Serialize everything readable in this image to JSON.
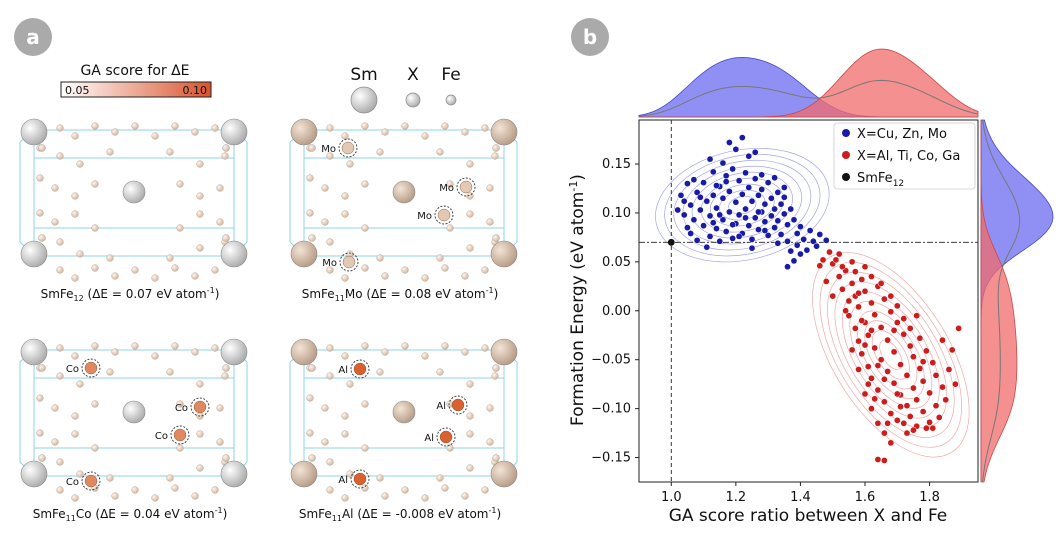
{
  "panel_a": {
    "badge": "a",
    "colorbar": {
      "title": "GA score for ΔE",
      "min_label": "0.05",
      "max_label": "0.10",
      "low_color": "#ffffff",
      "high_color": "#d9532b"
    },
    "atom_legend": [
      "Sm",
      "X",
      "Fe"
    ],
    "structures": [
      {
        "formula_main": "SmFe",
        "sub": "12",
        "formula_tail": "",
        "caption": "(ΔE = 0.07 eV atom",
        "sup": "-1",
        "close": ")",
        "dopant": "",
        "dopant_color": ""
      },
      {
        "formula_main": "SmFe",
        "sub": "11",
        "formula_tail": "Mo",
        "caption": "(ΔE = 0.08 eV atom",
        "sup": "-1",
        "close": ")",
        "dopant": "Mo",
        "dopant_color": "#e3c9b3"
      },
      {
        "formula_main": "SmFe",
        "sub": "11",
        "formula_tail": "Co",
        "caption": "(ΔE = 0.04 eV atom",
        "sup": "-1",
        "close": ")",
        "dopant": "Co",
        "dopant_color": "#e08860"
      },
      {
        "formula_main": "SmFe",
        "sub": "11",
        "formula_tail": "Al",
        "caption": "(ΔE = -0.008 eV atom",
        "sup": "-1",
        "close": ")",
        "dopant": "Al",
        "dopant_color": "#d9602f"
      }
    ]
  },
  "panel_b": {
    "badge": "b",
    "xlabel": "GA score ratio between X and Fe",
    "ylabel_main": "Formation Energy (eV atom",
    "ylabel_sup": "-1",
    "ylabel_close": ")",
    "legend": [
      {
        "label": "X=Cu, Zn, Mo",
        "color": "#1a1aa8"
      },
      {
        "label": "X=Al, Ti, Co, Ga",
        "color": "#cc1c1c"
      },
      {
        "label": "SmFe",
        "sub": "12",
        "color": "#111111"
      }
    ]
  },
  "chart_data": {
    "type": "scatter",
    "xlabel": "GA score ratio between X and Fe",
    "ylabel": "Formation Energy (eV atom-1)",
    "xlim": [
      0.9,
      1.95
    ],
    "ylim": [
      -0.175,
      0.195
    ],
    "xticks": [
      1.0,
      1.2,
      1.4,
      1.6,
      1.8
    ],
    "xtick_labels": [
      "1.0",
      "1.2",
      "1.4",
      "1.6",
      "1.8"
    ],
    "yticks": [
      0.15,
      0.1,
      0.05,
      0.0,
      -0.05,
      -0.1,
      -0.15
    ],
    "ytick_labels": [
      "0.15",
      "0.10",
      "0.05",
      "0.00",
      "−0.05",
      "−0.10",
      "−0.15"
    ],
    "reference_lines": {
      "x": 1.0,
      "y": 0.07
    },
    "grid": false,
    "legend_position": "top-right",
    "series": [
      {
        "name": "X=Cu, Zn, Mo",
        "color": "#1a1aa8",
        "points": [
          [
            1.03,
            0.118
          ],
          [
            1.04,
            0.098
          ],
          [
            1.05,
            0.085
          ],
          [
            1.06,
            0.108
          ],
          [
            1.06,
            0.079
          ],
          [
            1.07,
            0.093
          ],
          [
            1.08,
            0.121
          ],
          [
            1.08,
            0.072
          ],
          [
            1.09,
            0.103
          ],
          [
            1.1,
            0.087
          ],
          [
            1.1,
            0.131
          ],
          [
            1.11,
            0.112
          ],
          [
            1.12,
            0.076
          ],
          [
            1.12,
            0.097
          ],
          [
            1.13,
            0.142
          ],
          [
            1.13,
            0.118
          ],
          [
            1.14,
            0.084
          ],
          [
            1.14,
            0.105
          ],
          [
            1.15,
            0.127
          ],
          [
            1.15,
            0.071
          ],
          [
            1.16,
            0.093
          ],
          [
            1.16,
            0.115
          ],
          [
            1.17,
            0.138
          ],
          [
            1.17,
            0.081
          ],
          [
            1.18,
            0.101
          ],
          [
            1.18,
            0.122
          ],
          [
            1.19,
            0.145
          ],
          [
            1.19,
            0.074
          ],
          [
            1.2,
            0.089
          ],
          [
            1.2,
            0.111
          ],
          [
            1.21,
            0.133
          ],
          [
            1.21,
            0.098
          ],
          [
            1.22,
            0.079
          ],
          [
            1.22,
            0.119
          ],
          [
            1.23,
            0.141
          ],
          [
            1.23,
            0.104
          ],
          [
            1.24,
            0.087
          ],
          [
            1.24,
            0.126
          ],
          [
            1.25,
            0.112
          ],
          [
            1.25,
            0.073
          ],
          [
            1.26,
            0.095
          ],
          [
            1.26,
            0.135
          ],
          [
            1.27,
            0.118
          ],
          [
            1.27,
            0.083
          ],
          [
            1.28,
            0.101
          ],
          [
            1.28,
            0.124
          ],
          [
            1.29,
            0.091
          ],
          [
            1.29,
            0.109
          ],
          [
            1.3,
            0.077
          ],
          [
            1.3,
            0.131
          ],
          [
            1.31,
            0.097
          ],
          [
            1.31,
            0.115
          ],
          [
            1.32,
            0.085
          ],
          [
            1.32,
            0.104
          ],
          [
            1.33,
            0.121
          ],
          [
            1.33,
            0.092
          ],
          [
            1.34,
            0.109
          ],
          [
            1.34,
            0.078
          ],
          [
            1.35,
            0.099
          ],
          [
            1.35,
            0.116
          ],
          [
            1.36,
            0.088
          ],
          [
            1.36,
            0.071
          ],
          [
            1.37,
            0.104
          ],
          [
            1.37,
            0.061
          ],
          [
            1.38,
            0.093
          ],
          [
            1.38,
            0.051
          ],
          [
            1.39,
            0.079
          ],
          [
            1.39,
            0.067
          ],
          [
            1.4,
            0.086
          ],
          [
            1.41,
            0.073
          ],
          [
            1.42,
            0.062
          ],
          [
            1.43,
            0.082
          ],
          [
            1.44,
            0.071
          ],
          [
            1.45,
            0.066
          ],
          [
            1.46,
            0.078
          ],
          [
            1.48,
            0.072
          ],
          [
            1.18,
            0.172
          ],
          [
            1.2,
            0.165
          ],
          [
            1.22,
            0.177
          ],
          [
            1.24,
            0.158
          ],
          [
            1.26,
            0.162
          ],
          [
            1.12,
            0.155
          ],
          [
            1.16,
            0.151
          ],
          [
            1.05,
            0.13
          ],
          [
            1.02,
            0.103
          ],
          [
            1.11,
            0.065
          ],
          [
            1.25,
            0.064
          ],
          [
            1.33,
            0.069
          ],
          [
            1.17,
            0.132
          ],
          [
            1.23,
            0.095
          ],
          [
            1.09,
            0.116
          ],
          [
            1.14,
            0.128
          ],
          [
            1.28,
            0.139
          ],
          [
            1.32,
            0.136
          ],
          [
            1.35,
            0.126
          ],
          [
            1.19,
            0.088
          ],
          [
            1.21,
            0.076
          ],
          [
            1.27,
            0.101
          ],
          [
            1.15,
            0.098
          ],
          [
            1.29,
            0.082
          ],
          [
            1.04,
            0.112
          ],
          [
            1.36,
            0.045
          ],
          [
            1.4,
            0.058
          ],
          [
            1.07,
            0.134
          ],
          [
            1.13,
            0.09
          ]
        ]
      },
      {
        "name": "X=Al, Ti, Co, Ga",
        "color": "#cc1c1c",
        "points": [
          [
            1.5,
            0.048
          ],
          [
            1.52,
            0.035
          ],
          [
            1.53,
            0.022
          ],
          [
            1.54,
            0.041
          ],
          [
            1.55,
            0.01
          ],
          [
            1.55,
            -0.005
          ],
          [
            1.56,
            0.028
          ],
          [
            1.57,
            -0.018
          ],
          [
            1.57,
            0.015
          ],
          [
            1.58,
            -0.031
          ],
          [
            1.58,
            0.004
          ],
          [
            1.59,
            0.032
          ],
          [
            1.59,
            -0.044
          ],
          [
            1.6,
            -0.012
          ],
          [
            1.6,
            0.02
          ],
          [
            1.61,
            -0.057
          ],
          [
            1.61,
            -0.025
          ],
          [
            1.62,
            0.008
          ],
          [
            1.62,
            -0.069
          ],
          [
            1.63,
            -0.038
          ],
          [
            1.63,
            -0.004
          ],
          [
            1.64,
            0.025
          ],
          [
            1.64,
            -0.081
          ],
          [
            1.65,
            -0.05
          ],
          [
            1.65,
            -0.017
          ],
          [
            1.66,
            0.012
          ],
          [
            1.66,
            -0.093
          ],
          [
            1.67,
            -0.062
          ],
          [
            1.67,
            -0.03
          ],
          [
            1.68,
            -0.001
          ],
          [
            1.68,
            -0.105
          ],
          [
            1.69,
            -0.074
          ],
          [
            1.69,
            -0.042
          ],
          [
            1.7,
            -0.012
          ],
          [
            1.7,
            -0.112
          ],
          [
            1.71,
            -0.086
          ],
          [
            1.71,
            -0.055
          ],
          [
            1.72,
            -0.024
          ],
          [
            1.72,
            -0.115
          ],
          [
            1.73,
            -0.097
          ],
          [
            1.73,
            -0.066
          ],
          [
            1.74,
            -0.036
          ],
          [
            1.74,
            -0.108
          ],
          [
            1.75,
            -0.079
          ],
          [
            1.75,
            -0.047
          ],
          [
            1.76,
            -0.118
          ],
          [
            1.76,
            -0.091
          ],
          [
            1.77,
            -0.059
          ],
          [
            1.77,
            -0.028
          ],
          [
            1.78,
            -0.103
          ],
          [
            1.78,
            -0.072
          ],
          [
            1.79,
            -0.041
          ],
          [
            1.8,
            -0.114
          ],
          [
            1.8,
            -0.084
          ],
          [
            1.81,
            -0.053
          ],
          [
            1.82,
            -0.097
          ],
          [
            1.82,
            -0.066
          ],
          [
            1.83,
            -0.109
          ],
          [
            1.84,
            -0.078
          ],
          [
            1.85,
            -0.091
          ],
          [
            1.86,
            -0.06
          ],
          [
            1.88,
            -0.075
          ],
          [
            1.89,
            -0.018
          ],
          [
            1.87,
            -0.04
          ],
          [
            1.84,
            -0.03
          ],
          [
            1.54,
            0.0
          ],
          [
            1.56,
            -0.04
          ],
          [
            1.58,
            -0.06
          ],
          [
            1.6,
            -0.085
          ],
          [
            1.62,
            -0.1
          ],
          [
            1.64,
            -0.115
          ],
          [
            1.66,
            -0.125
          ],
          [
            1.68,
            -0.135
          ],
          [
            1.64,
            -0.152
          ],
          [
            1.66,
            -0.153
          ],
          [
            1.52,
            0.058
          ],
          [
            1.49,
            0.06
          ],
          [
            1.47,
            0.052
          ],
          [
            1.6,
            0.045
          ],
          [
            1.62,
            0.035
          ],
          [
            1.65,
            0.028
          ],
          [
            1.68,
            0.015
          ],
          [
            1.7,
            0.005
          ],
          [
            1.72,
            -0.008
          ],
          [
            1.74,
            -0.018
          ],
          [
            1.76,
            -0.005
          ],
          [
            1.78,
            -0.052
          ],
          [
            1.73,
            -0.125
          ],
          [
            1.7,
            -0.085
          ],
          [
            1.67,
            -0.115
          ],
          [
            1.63,
            -0.09
          ],
          [
            1.61,
            -0.075
          ],
          [
            1.59,
            -0.01
          ],
          [
            1.57,
            0.04
          ],
          [
            1.56,
            0.05
          ],
          [
            1.81,
            -0.12
          ],
          [
            1.79,
            -0.12
          ],
          [
            1.75,
            -0.122
          ],
          [
            1.71,
            -0.098
          ],
          [
            1.69,
            -0.02
          ],
          [
            1.66,
            -0.07
          ],
          [
            1.64,
            -0.056
          ],
          [
            1.62,
            -0.02
          ],
          [
            1.6,
            -0.035
          ],
          [
            1.58,
            0.018
          ],
          [
            1.53,
            0.045
          ],
          [
            1.51,
            0.052
          ],
          [
            1.5,
            0.015
          ],
          [
            1.48,
            0.03
          ],
          [
            1.46,
            0.046
          ]
        ]
      },
      {
        "name": "SmFe12",
        "color": "#111111",
        "points": [
          [
            1.0,
            0.07
          ]
        ]
      }
    ]
  }
}
